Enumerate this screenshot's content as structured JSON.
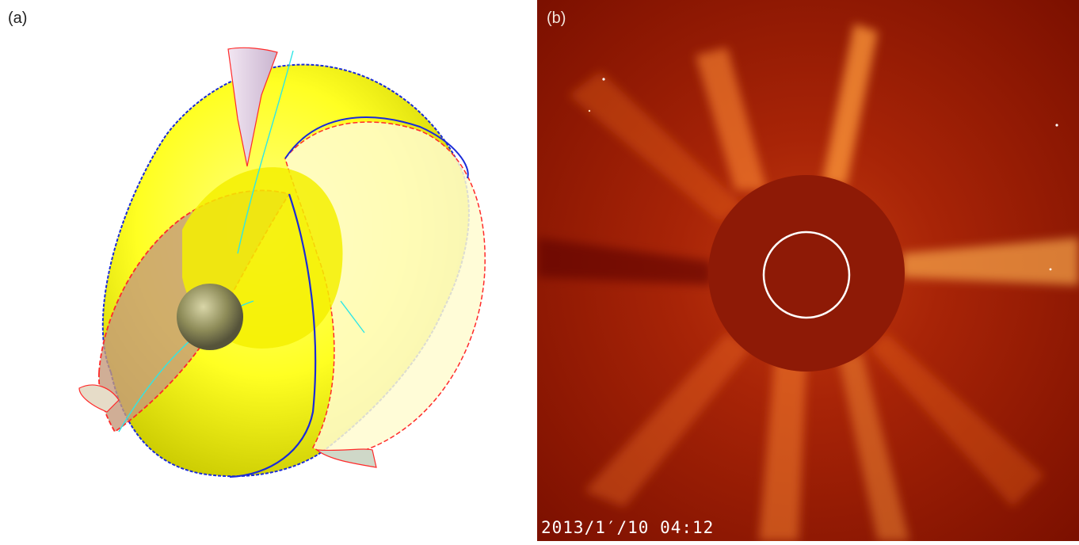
{
  "panels": {
    "a": {
      "label": "(a)",
      "colors": {
        "shell": "#ffff33",
        "shell_shadow": "#d9d900",
        "cone": "#e4d2e8",
        "inner_sphere": "#8c8a55",
        "line_blue": "#1a2bd8",
        "line_red": "#ff2a2a",
        "line_cyan": "#2ee6e6"
      }
    },
    "b": {
      "label": "(b)",
      "timestamp": "2013/1′/10 04:12",
      "colors": {
        "background": "#8a1400",
        "occulter": "#8e1a06",
        "streamer": "#ffb040",
        "sun_circle": "#ffffff"
      }
    }
  }
}
